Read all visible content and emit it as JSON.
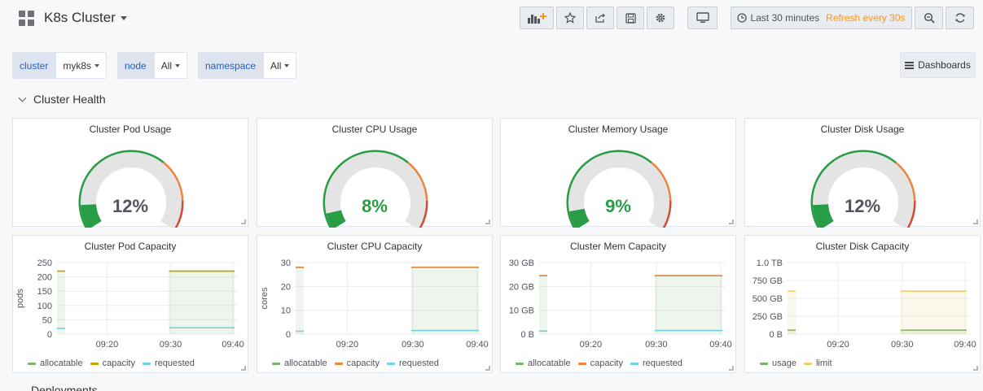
{
  "header": {
    "title": "K8s Cluster",
    "time_range": "Last 30 minutes",
    "refresh": "Refresh every 30s",
    "buttons": [
      {
        "name": "add-panel-button",
        "icon": "bar-chart-plus-icon"
      },
      {
        "name": "star-button",
        "icon": "star-icon"
      },
      {
        "name": "share-button",
        "icon": "share-icon"
      },
      {
        "name": "save-button",
        "icon": "save-icon"
      },
      {
        "name": "settings-button",
        "icon": "gear-icon"
      },
      {
        "name": "tv-mode-button",
        "icon": "monitor-icon"
      },
      {
        "name": "zoom-out-button",
        "icon": "zoom-out-icon"
      },
      {
        "name": "refresh-button",
        "icon": "refresh-icon"
      }
    ]
  },
  "variables": [
    {
      "label": "cluster",
      "value": "myk8s"
    },
    {
      "label": "node",
      "value": "All"
    },
    {
      "label": "namespace",
      "value": "All"
    }
  ],
  "dashboards_label": "Dashboards",
  "row_title": "Cluster Health",
  "next_row_title": "Deployments",
  "colors": {
    "green": "#299c46",
    "orange": "#ef843c",
    "red": "#d44a3a",
    "olive": "#7eb26d",
    "gold": "#cca300",
    "cyan": "#6ed0e0"
  },
  "gauges": [
    {
      "title": "Cluster Pod Usage",
      "value": "12%",
      "percent": 12,
      "value_color": "#52545c"
    },
    {
      "title": "Cluster CPU Usage",
      "value": "8%",
      "percent": 8,
      "value_color": "#299c46"
    },
    {
      "title": "Cluster Memory Usage",
      "value": "9%",
      "percent": 9,
      "value_color": "#299c46"
    },
    {
      "title": "Cluster Disk Usage",
      "value": "12%",
      "percent": 12,
      "value_color": "#52545c"
    }
  ],
  "chart_data": [
    {
      "type": "line",
      "title": "Cluster Pod Capacity",
      "ylabel": "pods",
      "yticks": [
        "250",
        "200",
        "150",
        "100",
        "50",
        "0"
      ],
      "ylim": [
        0,
        250
      ],
      "xticks": [
        "09:20",
        "09:30",
        "09:40"
      ],
      "series": [
        {
          "name": "allocatable",
          "color": "#7eb26d",
          "values": [
            220,
            220
          ]
        },
        {
          "name": "capacity",
          "color": "#cca300",
          "values": [
            220,
            220
          ]
        },
        {
          "name": "requested",
          "color": "#6ed0e0",
          "values": [
            20,
            22
          ]
        }
      ]
    },
    {
      "type": "line",
      "title": "Cluster CPU Capacity",
      "ylabel": "cores",
      "yticks": [
        "30",
        "20",
        "10",
        "0"
      ],
      "ylim": [
        0,
        30
      ],
      "xticks": [
        "09:20",
        "09:30",
        "09:40"
      ],
      "series": [
        {
          "name": "allocatable",
          "color": "#7eb26d",
          "values": [
            28,
            28
          ]
        },
        {
          "name": "capacity",
          "color": "#ef843c",
          "values": [
            28,
            28
          ]
        },
        {
          "name": "requested",
          "color": "#6ed0e0",
          "values": [
            1.2,
            1.5
          ]
        }
      ]
    },
    {
      "type": "line",
      "title": "Cluster Mem Capacity",
      "ylabel": "",
      "yticks": [
        "30 GB",
        "20 GB",
        "10 GB",
        "0 B"
      ],
      "ylim": [
        0,
        30
      ],
      "xticks": [
        "09:20",
        "09:30",
        "09:40"
      ],
      "series": [
        {
          "name": "allocatable",
          "color": "#7eb26d",
          "values": [
            24.5,
            24.5
          ]
        },
        {
          "name": "capacity",
          "color": "#ef843c",
          "values": [
            24.5,
            24.5
          ]
        },
        {
          "name": "requested",
          "color": "#6ed0e0",
          "values": [
            1.3,
            1.5
          ]
        }
      ]
    },
    {
      "type": "line",
      "title": "Cluster Disk Capacity",
      "ylabel": "",
      "yticks": [
        "1.0 TB",
        "750 GB",
        "500 GB",
        "250 GB",
        "0 B"
      ],
      "ylim": [
        0,
        1000
      ],
      "xticks": [
        "09:20",
        "09:30",
        "09:40"
      ],
      "series": [
        {
          "name": "usage",
          "color": "#7eb26d",
          "values": [
            55,
            55
          ]
        },
        {
          "name": "limit",
          "color": "#f2c96d",
          "values": [
            600,
            600
          ]
        }
      ]
    }
  ]
}
